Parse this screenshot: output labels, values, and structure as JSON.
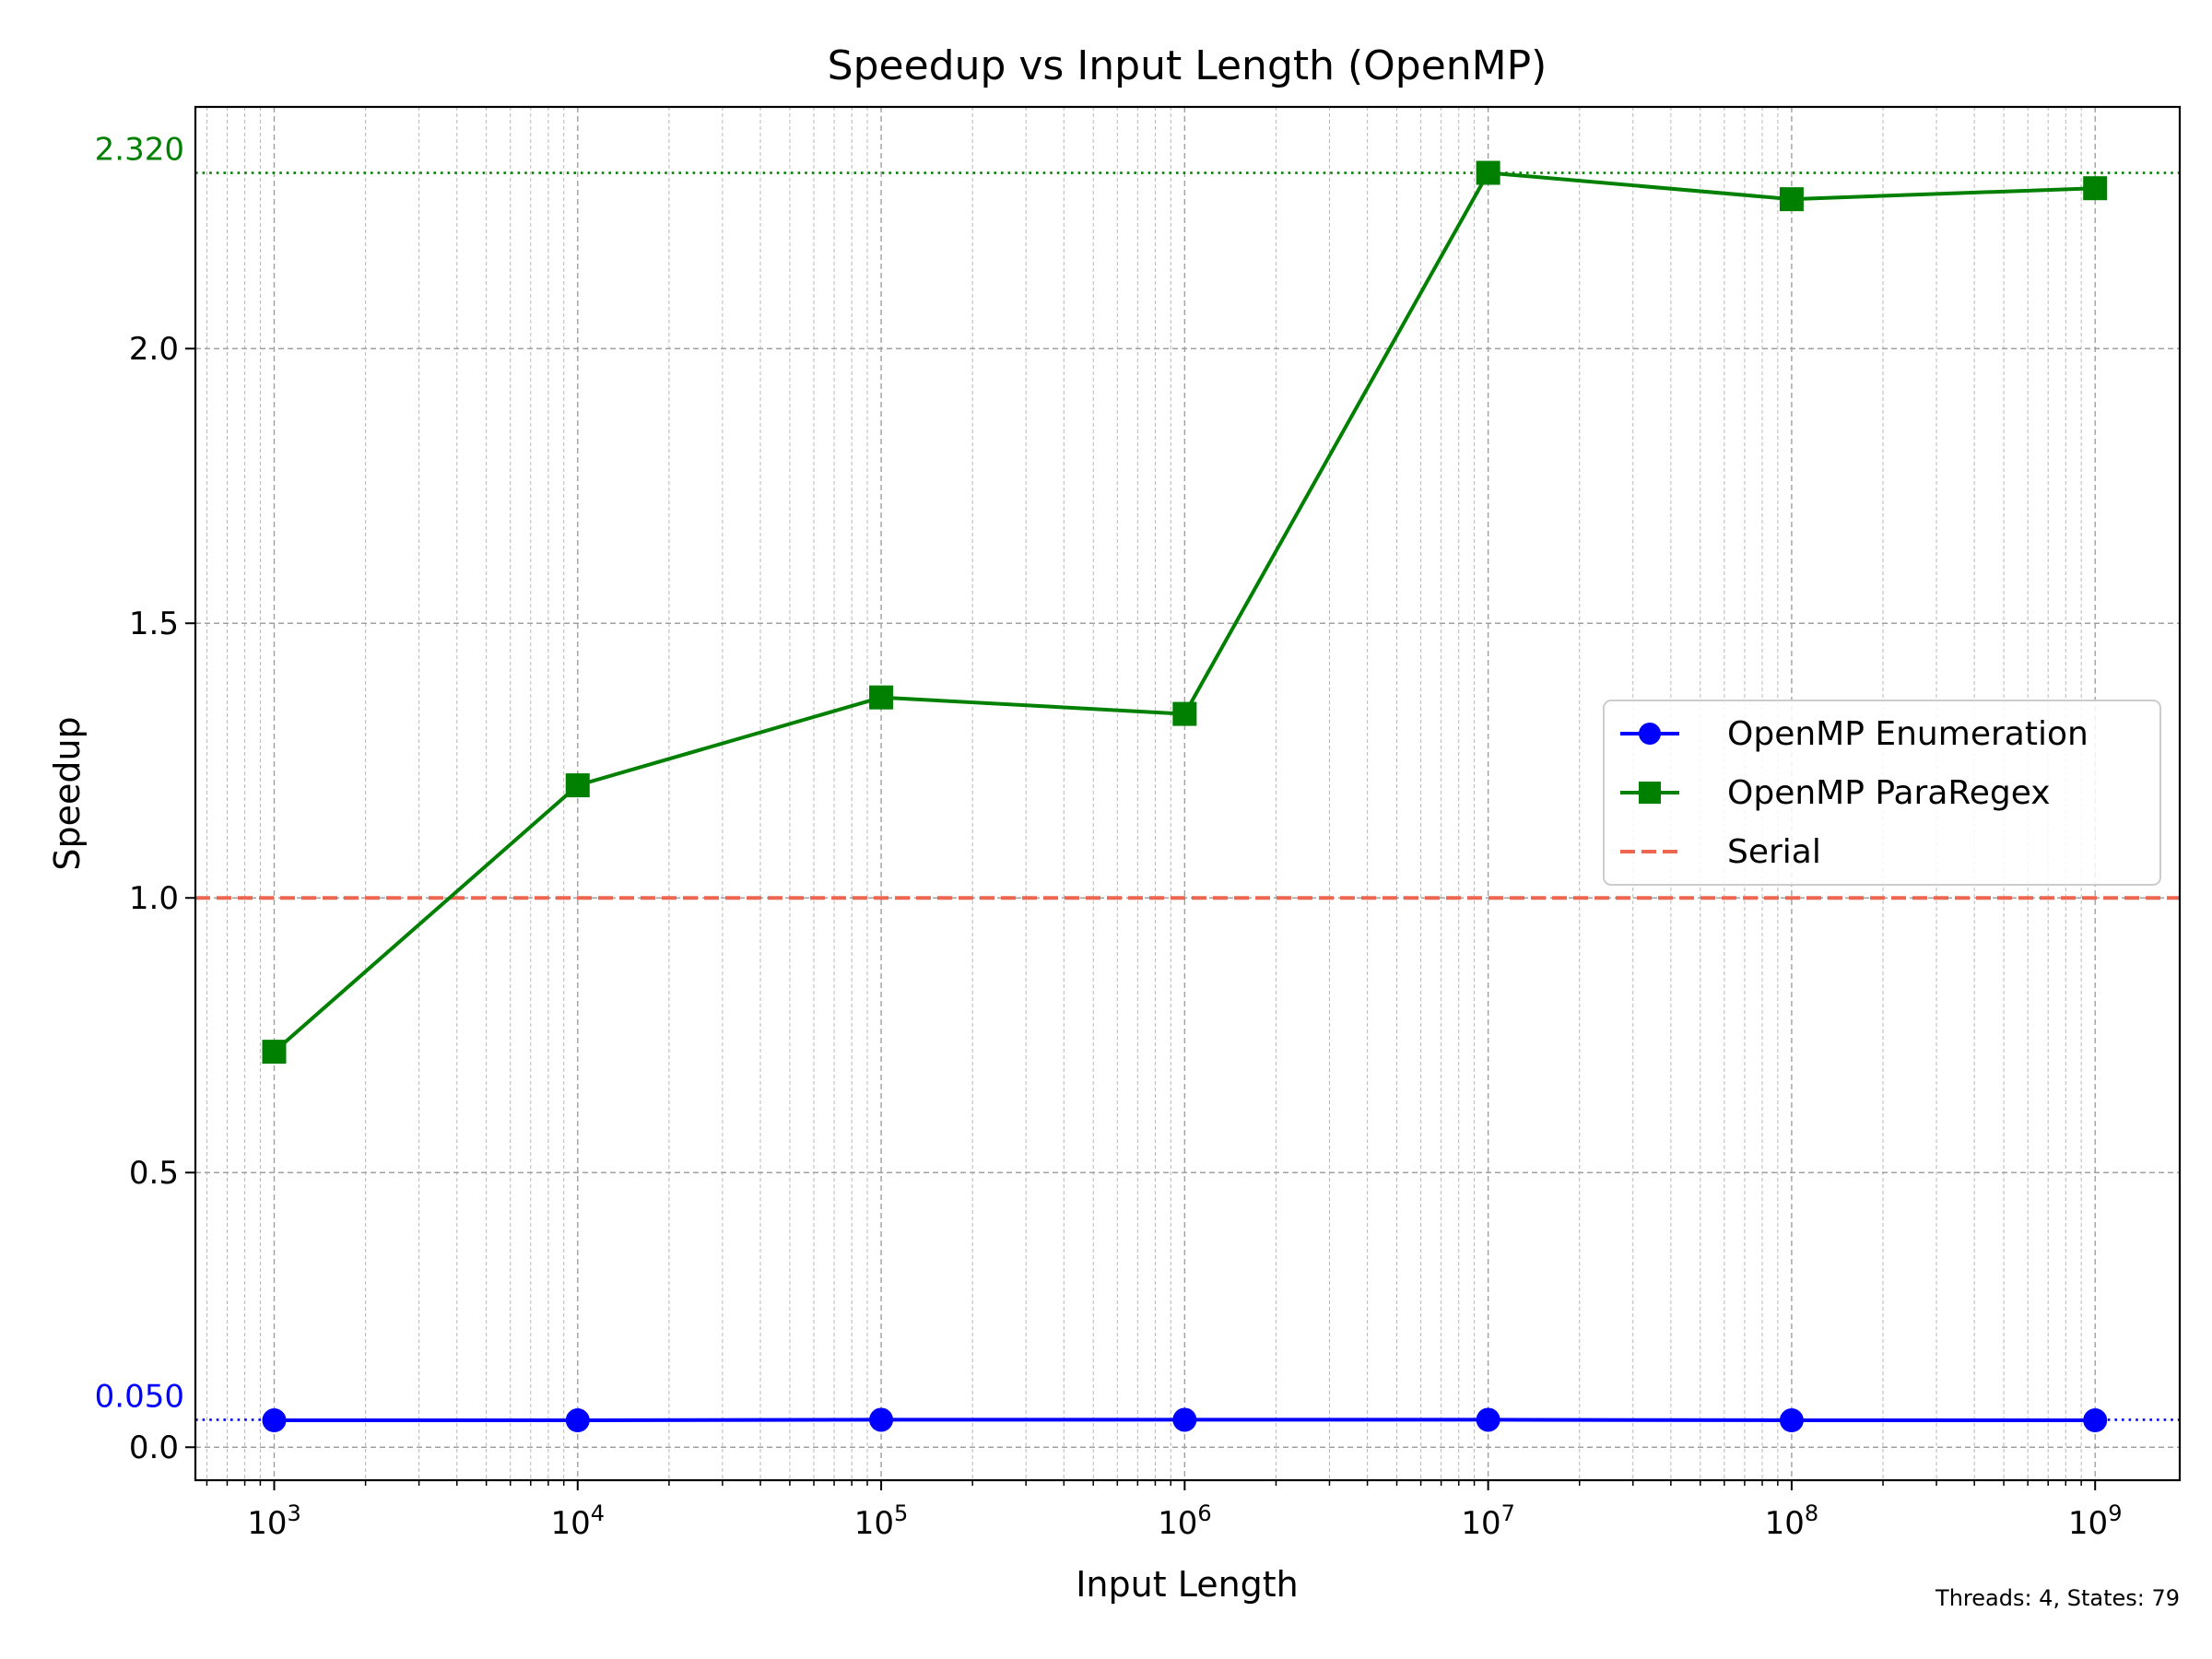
{
  "chart_data": {
    "type": "line",
    "title": "Speedup vs Input Length (OpenMP)",
    "xlabel": "Input Length",
    "ylabel": "Speedup",
    "xscale": "log",
    "x": [
      1000,
      10000,
      100000,
      1000000,
      10000000,
      100000000,
      1000000000
    ],
    "xlim": [
      550,
      1900000000
    ],
    "ylim": [
      -0.06,
      2.44
    ],
    "x_ticks": [
      {
        "value": 1000,
        "base": "10",
        "exp": "3"
      },
      {
        "value": 10000,
        "base": "10",
        "exp": "4"
      },
      {
        "value": 100000,
        "base": "10",
        "exp": "5"
      },
      {
        "value": 1000000,
        "base": "10",
        "exp": "6"
      },
      {
        "value": 10000000,
        "base": "10",
        "exp": "7"
      },
      {
        "value": 100000000,
        "base": "10",
        "exp": "8"
      },
      {
        "value": 1000000000,
        "base": "10",
        "exp": "9"
      }
    ],
    "y_ticks": [
      {
        "value": 0.0,
        "label": "0.0"
      },
      {
        "value": 0.5,
        "label": "0.5"
      },
      {
        "value": 1.0,
        "label": "1.0"
      },
      {
        "value": 1.5,
        "label": "1.5"
      },
      {
        "value": 2.0,
        "label": "2.0"
      }
    ],
    "grid": true,
    "series": [
      {
        "name": "OpenMP Enumeration",
        "color": "#0000ff",
        "marker": "circle",
        "values": [
          0.049,
          0.049,
          0.05,
          0.05,
          0.05,
          0.049,
          0.049
        ]
      },
      {
        "name": "OpenMP ParaRegex",
        "color": "#008000",
        "marker": "square",
        "values": [
          0.72,
          1.205,
          1.365,
          1.335,
          2.32,
          2.272,
          2.292
        ]
      }
    ],
    "reference_lines": [
      {
        "name": "Serial",
        "value": 1.0,
        "color": "#ee6650",
        "style": "dashed",
        "in_legend": true
      },
      {
        "value": 2.32,
        "label": "2.320",
        "color": "#008000",
        "style": "dotted",
        "in_legend": false
      },
      {
        "value": 0.05,
        "label": "0.050",
        "color": "#0000ff",
        "style": "dotted",
        "in_legend": false
      }
    ],
    "legend_position": "center-right",
    "footnote": "Threads: 4, States: 79"
  }
}
